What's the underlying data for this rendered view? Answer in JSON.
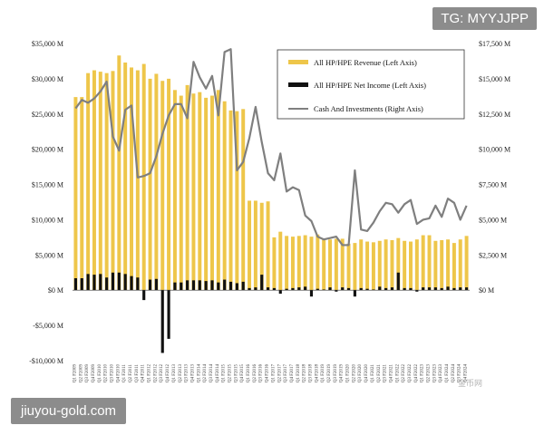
{
  "watermarks": {
    "top_right": "TG: MYYJJPP",
    "bottom_left": "jiuyou-gold.com",
    "mid": "金币网"
  },
  "colors": {
    "revenue": "#eec64a",
    "income": "#111111",
    "cash": "#7f7f7f",
    "axis": "#333333"
  },
  "chart_data": {
    "type": "bar",
    "title": "",
    "grid": false,
    "legend_position": "top-right",
    "legend": [
      {
        "key": "revenue",
        "label": "All HP/HPE Revenue (Left Axis)"
      },
      {
        "key": "income",
        "label": "All HP/HPE Net Income (Left Axis)"
      },
      {
        "key": "cash",
        "label": "Cash And Investments (Right Axis)"
      }
    ],
    "left_axis": {
      "ylim": [
        -10000,
        35000
      ],
      "ticks": [
        35000,
        30000,
        25000,
        20000,
        15000,
        10000,
        5000,
        0,
        -5000,
        -10000
      ],
      "tick_labels": [
        "$35,000 M",
        "$30,000 M",
        "$25,000 M",
        "$20,000 M",
        "$15,000 M",
        "$10,000 M",
        "$5,000 M",
        "$0 M",
        "-$5,000 M",
        "-$10,000 M"
      ]
    },
    "right_axis": {
      "ylim": [
        -5000,
        17500
      ],
      "ticks": [
        17500,
        15000,
        12500,
        10000,
        7500,
        5000,
        2500,
        0
      ],
      "tick_labels": [
        "$17,500 M",
        "$15,000 M",
        "$12,500 M",
        "$10,000 M",
        "$7,500 M",
        "$5,000 M",
        "$2,500 M",
        "$0 M"
      ]
    },
    "categories": [
      "Q1 F2009",
      "Q2 F2009",
      "Q3 F2009",
      "Q4 F2009",
      "Q1 F2010",
      "Q2 F2010",
      "Q3 F2010",
      "Q4 F2010",
      "Q1 F2011",
      "Q2 F2011",
      "Q3 F2011",
      "Q4 F2011",
      "Q1 F2012",
      "Q2 F2012",
      "Q3 F2012",
      "Q4 F2012",
      "Q1 F2013",
      "Q2 F2013",
      "Q3 F2013",
      "Q4 F2013",
      "Q1 F2014",
      "Q2 F2014",
      "Q3 F2014",
      "Q4 F2014",
      "Q1 F2015",
      "Q2 F2015",
      "Q3 F2015",
      "Q4 F2015",
      "Q1 F2016",
      "Q2 F2016",
      "Q3 F2016",
      "Q4 F2016",
      "Q1 F2017",
      "Q2 F2017",
      "Q3 F2017",
      "Q4 F2017",
      "Q1 F2018",
      "Q2 F2018",
      "Q3 F2018",
      "Q4 F2018",
      "Q1 F2019",
      "Q2 F2019",
      "Q3 F2019",
      "Q4 F2019",
      "Q1 F2020",
      "Q2 F2020",
      "Q3 F2020",
      "Q4 F2020",
      "Q1 F2021",
      "Q2 F2021",
      "Q3 F2021",
      "Q4 F2021",
      "Q1 F2022",
      "Q2 F2022",
      "Q3 F2022",
      "Q4 F2022",
      "Q1 F2023",
      "Q2 F2023",
      "Q3 F2023",
      "Q4 F2023",
      "Q1 F2024",
      "Q2 F2024",
      "Q3 F2024",
      "Q4 F2024"
    ],
    "series": [
      {
        "key": "revenue",
        "name": "All HP/HPE Revenue (Left Axis)",
        "type": "bar",
        "axis": "left",
        "values": [
          27400,
          27400,
          30800,
          31200,
          31000,
          30800,
          31100,
          33300,
          32300,
          31600,
          31200,
          32100,
          30000,
          30700,
          29700,
          30000,
          28400,
          27600,
          29100,
          27900,
          28100,
          27300,
          27600,
          28400,
          26800,
          25500,
          25400,
          25700,
          12700,
          12700,
          12400,
          12600,
          7500,
          8300,
          7700,
          7600,
          7700,
          7800,
          7600,
          7900,
          7200,
          7200,
          7300,
          7300,
          6600,
          6700,
          7200,
          6900,
          6800,
          7000,
          7200,
          7100,
          7400,
          7000,
          6900,
          7200,
          7800,
          7800,
          7000,
          7100,
          7200,
          6700,
          7200,
          7700
        ]
      },
      {
        "key": "income",
        "name": "All HP/HPE Net Income (Left Axis)",
        "type": "bar",
        "axis": "left",
        "values": [
          1700,
          1700,
          2300,
          2200,
          2300,
          1800,
          2500,
          2500,
          2300,
          2000,
          1800,
          -1400,
          1500,
          1600,
          -8900,
          -6900,
          1100,
          1100,
          1400,
          1400,
          1400,
          1300,
          1400,
          1100,
          1500,
          1200,
          1000,
          1200,
          300,
          400,
          2200,
          400,
          300,
          -500,
          200,
          300,
          400,
          500,
          -900,
          200,
          100,
          400,
          -200,
          400,
          300,
          -900,
          300,
          200,
          100,
          500,
          300,
          400,
          2500,
          300,
          300,
          -200,
          400,
          400,
          400,
          300,
          500,
          300,
          400,
          400
        ]
      },
      {
        "key": "cash",
        "name": "Cash And Investments (Right Axis)",
        "type": "line",
        "axis": "right",
        "values": [
          12900,
          13500,
          13300,
          13600,
          14100,
          14800,
          10900,
          9900,
          12800,
          13100,
          8000,
          8100,
          8300,
          9500,
          11100,
          12400,
          13200,
          13200,
          12200,
          16200,
          15100,
          14300,
          15200,
          12400,
          16900,
          17100,
          8500,
          9100,
          10800,
          13000,
          10500,
          8300,
          7800,
          9700,
          7000,
          7300,
          7100,
          5300,
          4900,
          3800,
          3600,
          3700,
          3800,
          3200,
          3200,
          8500,
          4300,
          4200,
          4800,
          5600,
          6200,
          6100,
          5500,
          6100,
          6400,
          4700,
          5000,
          5100,
          6000,
          5200,
          6500,
          6200,
          5000,
          6000
        ]
      }
    ]
  }
}
